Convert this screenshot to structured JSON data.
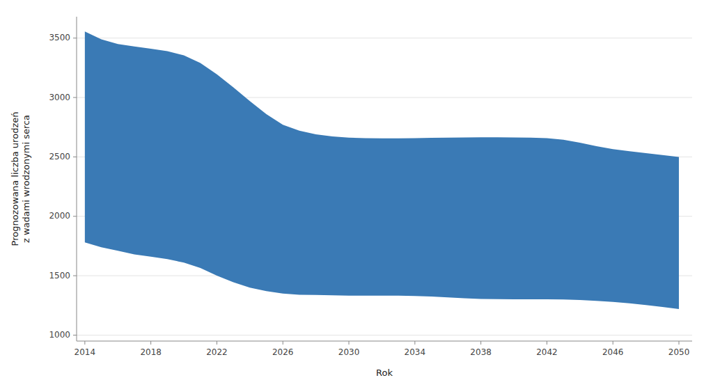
{
  "chart_data": {
    "type": "band",
    "x": [
      2014,
      2015,
      2016,
      2017,
      2018,
      2019,
      2020,
      2021,
      2022,
      2023,
      2024,
      2025,
      2026,
      2027,
      2028,
      2029,
      2030,
      2031,
      2032,
      2033,
      2034,
      2035,
      2036,
      2037,
      2038,
      2039,
      2040,
      2041,
      2042,
      2043,
      2044,
      2045,
      2046,
      2047,
      2048,
      2049,
      2050
    ],
    "upper": [
      3555,
      3490,
      3450,
      3430,
      3410,
      3390,
      3355,
      3290,
      3195,
      3085,
      2970,
      2860,
      2770,
      2720,
      2690,
      2673,
      2662,
      2658,
      2656,
      2656,
      2658,
      2660,
      2662,
      2664,
      2665,
      2665,
      2664,
      2662,
      2658,
      2645,
      2620,
      2590,
      2565,
      2548,
      2532,
      2516,
      2500
    ],
    "lower": [
      1780,
      1740,
      1710,
      1680,
      1660,
      1640,
      1610,
      1565,
      1500,
      1445,
      1400,
      1370,
      1350,
      1340,
      1338,
      1335,
      1332,
      1332,
      1332,
      1332,
      1330,
      1325,
      1318,
      1310,
      1305,
      1303,
      1302,
      1302,
      1302,
      1300,
      1295,
      1288,
      1280,
      1268,
      1253,
      1237,
      1220
    ],
    "color": "#3a7ab5",
    "ylabel": "Prognozowana liczba urodzeń\nz wadami wrodzonymi serca",
    "xlabel": "Rok",
    "ylim": [
      950,
      3680
    ],
    "yticks": [
      1000,
      1500,
      2000,
      2500,
      3000,
      3500
    ],
    "xlim": [
      2013.5,
      2050.8
    ],
    "xticks": [
      2014,
      2018,
      2022,
      2026,
      2030,
      2034,
      2038,
      2042,
      2046,
      2050
    ],
    "grid": true
  }
}
